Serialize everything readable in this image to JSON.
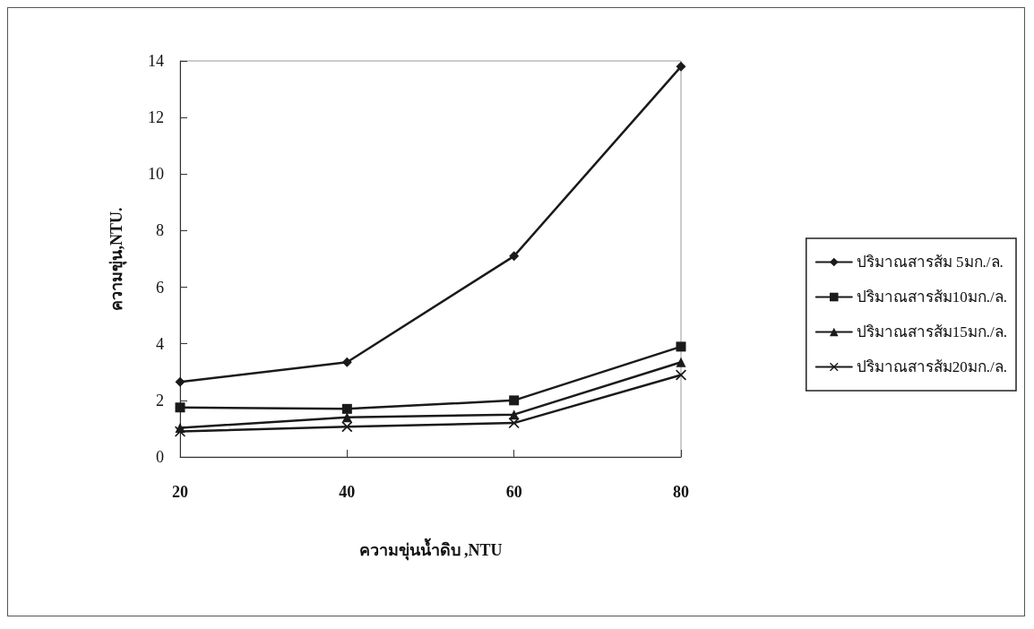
{
  "chart_data": {
    "type": "line",
    "xlabel": "ความขุ่นน้ำดิบ ,NTU",
    "ylabel": "ความขุ่น,NTU.",
    "x": [
      20,
      40,
      60,
      80
    ],
    "xlim": [
      20,
      80
    ],
    "xticks": [
      20,
      40,
      60,
      80
    ],
    "ylim": [
      0,
      14
    ],
    "yticks": [
      0,
      2,
      4,
      6,
      8,
      10,
      12,
      14
    ],
    "grid": false,
    "legend": "right",
    "line_style": "solid",
    "series": [
      {
        "name": "ปริมาณสารส้ม 5มก./ล.",
        "color": "#1a1a1a",
        "marker": "diamond",
        "values": [
          2.65,
          3.35,
          7.1,
          13.8
        ]
      },
      {
        "name": "ปริมาณสารส้ม10มก./ล.",
        "color": "#1a1a1a",
        "marker": "square",
        "values": [
          1.75,
          1.7,
          2.0,
          3.9
        ]
      },
      {
        "name": "ปริมาณสารส้ม15มก./ล.",
        "color": "#1a1a1a",
        "marker": "triangle",
        "values": [
          1.03,
          1.4,
          1.5,
          3.35
        ]
      },
      {
        "name": "ปริมาณสารส้ม20มก./ล.",
        "color": "#1a1a1a",
        "marker": "cross",
        "values": [
          0.9,
          1.07,
          1.2,
          2.9
        ]
      }
    ]
  }
}
